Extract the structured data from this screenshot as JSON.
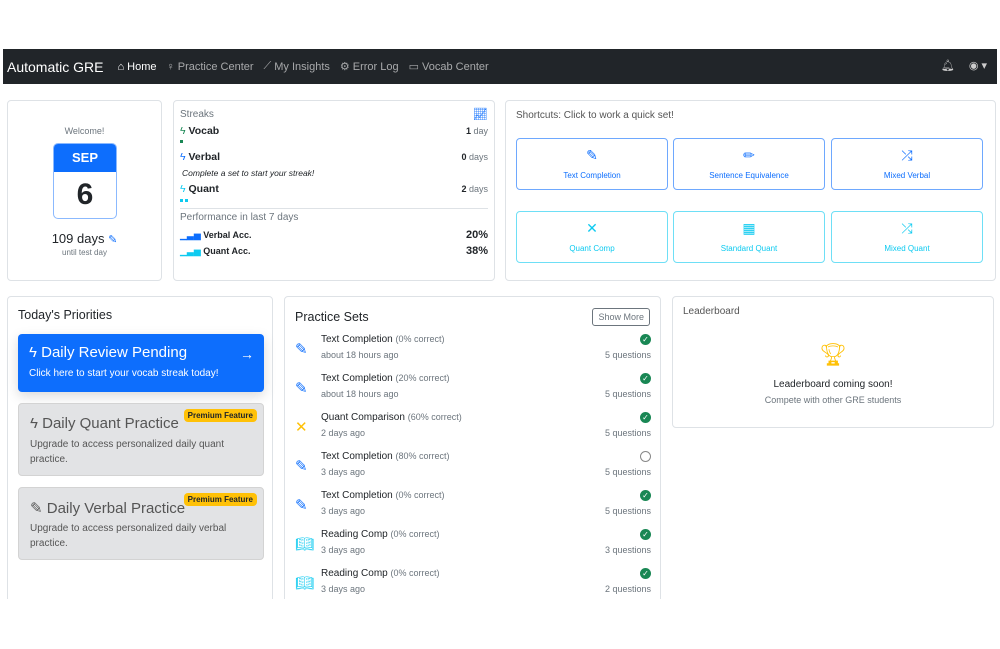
{
  "nav": {
    "brand": "Automatic GRE",
    "items": [
      {
        "label": "Home",
        "icon": "house-icon",
        "active": true
      },
      {
        "label": "Practice Center",
        "icon": "lightbulb-icon"
      },
      {
        "label": "My Insights",
        "icon": "graph-icon"
      },
      {
        "label": "Error Log",
        "icon": "bug-icon"
      },
      {
        "label": "Vocab Center",
        "icon": "card-text-icon"
      }
    ]
  },
  "welcome": {
    "title": "Welcome!",
    "month": "SEP",
    "day": "6",
    "days": "109 days",
    "until": "until test day"
  },
  "streaks": {
    "title": "Streaks",
    "items": [
      {
        "name": "Vocab",
        "value": "1",
        "unit": "day",
        "color": "#198754"
      },
      {
        "name": "Verbal",
        "value": "0",
        "unit": "days",
        "note": "Complete a set to start your streak!",
        "color": "#0d6efd"
      },
      {
        "name": "Quant",
        "value": "2",
        "unit": "days",
        "color": "#0dcaf0"
      }
    ],
    "perf_title": "Performance in last 7 days",
    "perf": [
      {
        "name": "Verbal Acc.",
        "value": "20%"
      },
      {
        "name": "Quant Acc.",
        "value": "38%"
      }
    ]
  },
  "shortcuts": {
    "title": "Shortcuts: Click to work a quick set!",
    "items": [
      {
        "label": "Text Completion",
        "icon": "pencil-square-icon"
      },
      {
        "label": "Sentence Equivalence",
        "icon": "pencil-icon"
      },
      {
        "label": "Mixed Verbal",
        "icon": "shuffle-icon"
      },
      {
        "label": "Quant Comp",
        "icon": "arrows-collapse-icon"
      },
      {
        "label": "Standard Quant",
        "icon": "calculator-icon"
      },
      {
        "label": "Mixed Quant",
        "icon": "shuffle-icon"
      }
    ]
  },
  "priorities": {
    "title": "Today's Priorities",
    "review": {
      "title": "Daily Review Pending",
      "sub": "Click here to start your vocab streak today!"
    },
    "quant": {
      "title": "Daily Quant Practice",
      "sub": "Upgrade to access personalized daily quant practice.",
      "badge": "Premium Feature"
    },
    "verbal": {
      "title": "Daily Verbal Practice",
      "sub": "Upgrade to access personalized daily verbal practice.",
      "badge": "Premium Feature"
    }
  },
  "practice": {
    "title": "Practice Sets",
    "show_more": "Show More",
    "items": [
      {
        "name": "Text Completion",
        "pct": "(0% correct)",
        "ago": "about 18 hours ago",
        "q": "5 questions",
        "done": true,
        "type": "tc"
      },
      {
        "name": "Text Completion",
        "pct": "(20% correct)",
        "ago": "about 18 hours ago",
        "q": "5 questions",
        "done": true,
        "type": "tc"
      },
      {
        "name": "Quant Comparison",
        "pct": "(60% correct)",
        "ago": "2 days ago",
        "q": "5 questions",
        "done": true,
        "type": "qc"
      },
      {
        "name": "Text Completion",
        "pct": "(80% correct)",
        "ago": "3 days ago",
        "q": "5 questions",
        "done": false,
        "type": "tc"
      },
      {
        "name": "Text Completion",
        "pct": "(0% correct)",
        "ago": "3 days ago",
        "q": "5 questions",
        "done": true,
        "type": "tc"
      },
      {
        "name": "Reading Comp",
        "pct": "(0% correct)",
        "ago": "3 days ago",
        "q": "3 questions",
        "done": true,
        "type": "rc"
      },
      {
        "name": "Reading Comp",
        "pct": "(0% correct)",
        "ago": "3 days ago",
        "q": "2 questions",
        "done": true,
        "type": "rc"
      }
    ]
  },
  "leaderboard": {
    "title": "Leaderboard",
    "headline": "Leaderboard coming soon!",
    "sub": "Compete with other GRE students"
  }
}
